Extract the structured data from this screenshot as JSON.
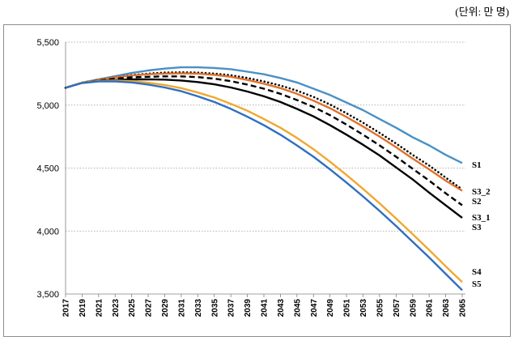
{
  "unit_label": "(단위: 만 명)",
  "chart_data": {
    "type": "line",
    "title": "",
    "xlabel": "",
    "ylabel": "",
    "unit": "(단위: 만 명)",
    "ylim": [
      3500,
      5500
    ],
    "yticks": [
      3500,
      4000,
      4500,
      5000,
      5500
    ],
    "ytick_labels": [
      "3,500",
      "4,000",
      "4,500",
      "5,000",
      "5,500"
    ],
    "xlim": [
      2017,
      2065
    ],
    "xticks": [
      2017,
      2019,
      2021,
      2023,
      2025,
      2027,
      2029,
      2031,
      2033,
      2035,
      2037,
      2039,
      2041,
      2043,
      2045,
      2047,
      2049,
      2051,
      2053,
      2055,
      2057,
      2059,
      2061,
      2063,
      2065
    ],
    "grid": "horizontal dotted",
    "legend": "labels at right end of each line",
    "series": [
      {
        "name": "S1",
        "color": "#4a90c4",
        "dash": "solid",
        "x": [
          2017,
          2019,
          2021,
          2023,
          2025,
          2027,
          2029,
          2031,
          2033,
          2035,
          2037,
          2039,
          2041,
          2043,
          2045,
          2047,
          2049,
          2051,
          2053,
          2055,
          2057,
          2059,
          2061,
          2063,
          2065
        ],
        "values": [
          5137,
          5178,
          5205,
          5230,
          5255,
          5275,
          5290,
          5300,
          5300,
          5295,
          5285,
          5265,
          5245,
          5215,
          5180,
          5130,
          5080,
          5020,
          4960,
          4890,
          4820,
          4745,
          4680,
          4605,
          4540
        ]
      },
      {
        "name": "S3_2",
        "color": "#000000",
        "dash": "dotted",
        "x": [
          2017,
          2019,
          2021,
          2023,
          2025,
          2027,
          2029,
          2031,
          2033,
          2035,
          2037,
          2039,
          2041,
          2043,
          2045,
          2047,
          2049,
          2051,
          2053,
          2055,
          2057,
          2059,
          2061,
          2063,
          2065
        ],
        "values": [
          5137,
          5178,
          5200,
          5220,
          5238,
          5250,
          5258,
          5260,
          5258,
          5250,
          5237,
          5215,
          5188,
          5155,
          5115,
          5065,
          5005,
          4935,
          4860,
          4780,
          4695,
          4605,
          4520,
          4425,
          4330
        ]
      },
      {
        "name": "S2",
        "color": "#e0712a",
        "dash": "solid",
        "x": [
          2017,
          2019,
          2021,
          2023,
          2025,
          2027,
          2029,
          2031,
          2033,
          2035,
          2037,
          2039,
          2041,
          2043,
          2045,
          2047,
          2049,
          2051,
          2053,
          2055,
          2057,
          2059,
          2061,
          2063,
          2065
        ],
        "values": [
          5137,
          5178,
          5200,
          5220,
          5235,
          5245,
          5250,
          5252,
          5250,
          5240,
          5225,
          5200,
          5170,
          5135,
          5090,
          5035,
          4975,
          4905,
          4830,
          4750,
          4665,
          4575,
          4490,
          4400,
          4320
        ]
      },
      {
        "name": "S3_1",
        "color": "#000000",
        "dash": "dashed",
        "x": [
          2017,
          2019,
          2021,
          2023,
          2025,
          2027,
          2029,
          2031,
          2033,
          2035,
          2037,
          2039,
          2041,
          2043,
          2045,
          2047,
          2049,
          2051,
          2053,
          2055,
          2057,
          2059,
          2061,
          2063,
          2065
        ],
        "values": [
          5137,
          5178,
          5195,
          5210,
          5220,
          5225,
          5228,
          5228,
          5222,
          5210,
          5190,
          5163,
          5130,
          5090,
          5040,
          4985,
          4920,
          4845,
          4765,
          4680,
          4590,
          4495,
          4400,
          4300,
          4205
        ]
      },
      {
        "name": "S3",
        "color": "#000000",
        "dash": "solid",
        "x": [
          2017,
          2019,
          2021,
          2023,
          2025,
          2027,
          2029,
          2031,
          2033,
          2035,
          2037,
          2039,
          2041,
          2043,
          2045,
          2047,
          2049,
          2051,
          2053,
          2055,
          2057,
          2059,
          2061,
          2063,
          2065
        ],
        "values": [
          5137,
          5178,
          5192,
          5200,
          5204,
          5205,
          5202,
          5195,
          5183,
          5165,
          5140,
          5108,
          5070,
          5025,
          4970,
          4910,
          4840,
          4765,
          4685,
          4600,
          4505,
          4410,
          4305,
          4205,
          4105
        ]
      },
      {
        "name": "S4",
        "color": "#f0a830",
        "dash": "solid",
        "x": [
          2017,
          2019,
          2021,
          2023,
          2025,
          2027,
          2029,
          2031,
          2033,
          2035,
          2037,
          2039,
          2041,
          2043,
          2045,
          2047,
          2049,
          2051,
          2053,
          2055,
          2057,
          2059,
          2061,
          2063,
          2065
        ],
        "values": [
          5137,
          5178,
          5192,
          5195,
          5190,
          5178,
          5160,
          5135,
          5100,
          5060,
          5010,
          4955,
          4890,
          4820,
          4740,
          4650,
          4550,
          4445,
          4335,
          4220,
          4100,
          3975,
          3850,
          3720,
          3595
        ]
      },
      {
        "name": "S5",
        "color": "#2e6fc0",
        "dash": "solid",
        "x": [
          2017,
          2019,
          2021,
          2023,
          2025,
          2027,
          2029,
          2031,
          2033,
          2035,
          2037,
          2039,
          2041,
          2043,
          2045,
          2047,
          2049,
          2051,
          2053,
          2055,
          2057,
          2059,
          2061,
          2063,
          2065
        ],
        "values": [
          5137,
          5175,
          5188,
          5188,
          5180,
          5163,
          5140,
          5110,
          5070,
          5025,
          4970,
          4908,
          4840,
          4765,
          4680,
          4590,
          4490,
          4385,
          4275,
          4160,
          4040,
          3915,
          3790,
          3660,
          3530
        ]
      }
    ],
    "end_labels": [
      "S1",
      "S3_2",
      "S2",
      "S3_1",
      "S3",
      "S4",
      "S5"
    ]
  }
}
